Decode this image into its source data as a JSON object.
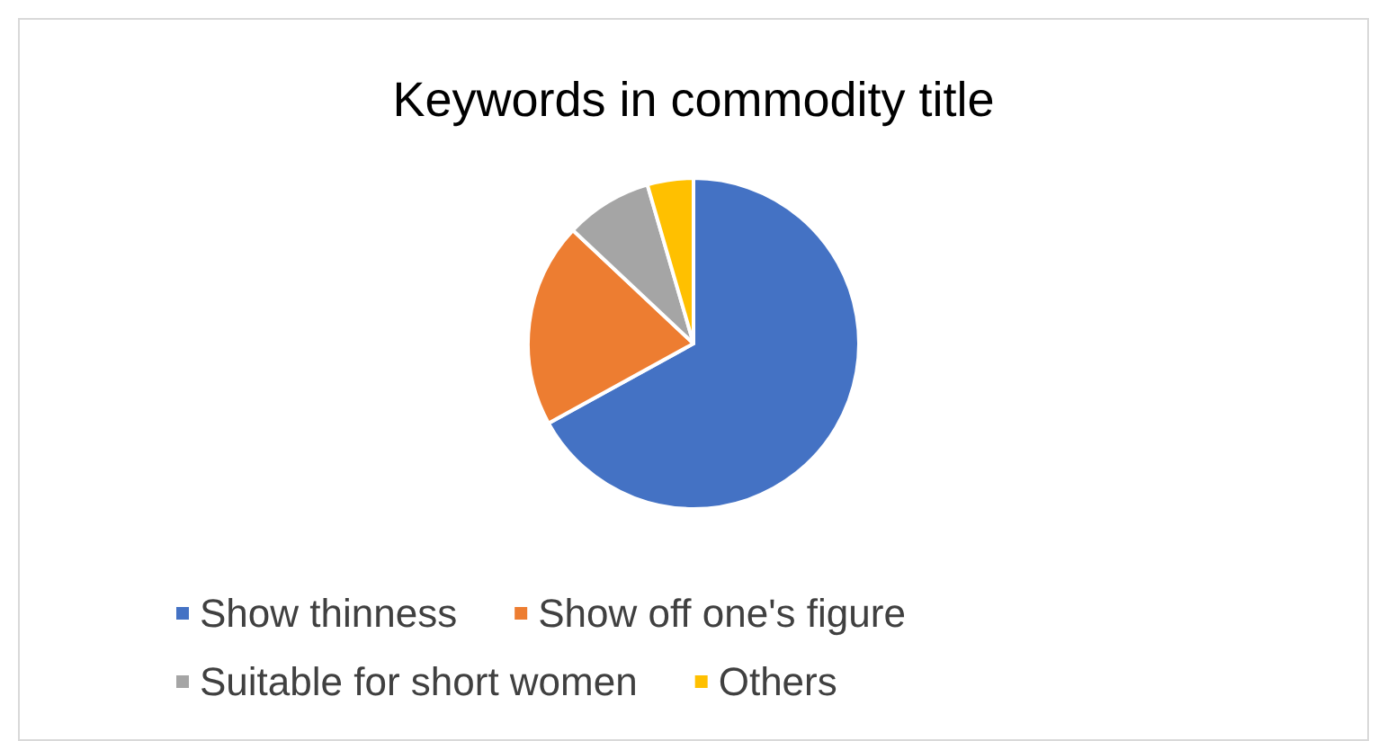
{
  "chart_data": {
    "type": "pie",
    "title": "Keywords in commodity title",
    "categories": [
      "Show thinness",
      "Show off one's figure",
      "Suitable for short women",
      "Others"
    ],
    "values": [
      67,
      20,
      8.5,
      4.5
    ],
    "colors": [
      "#4472c4",
      "#ed7d31",
      "#a5a5a5",
      "#ffc000"
    ],
    "legend": "bottom"
  }
}
